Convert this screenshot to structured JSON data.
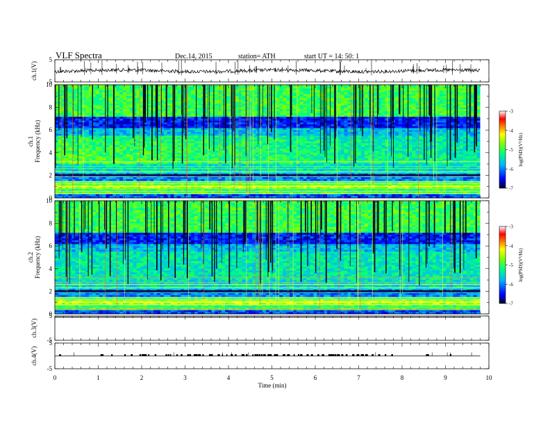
{
  "header": {
    "title": "VLF  Spectra",
    "date": "Dec.14, 2015",
    "station": "station= ATH",
    "start": "start  UT =    14: 50: 1"
  },
  "chart_data": [
    {
      "type": "line",
      "name": "ch1-waveform",
      "ylabel": "ch.1(V)",
      "ylim": [
        -5,
        5
      ],
      "yticks": [
        "5",
        "-5"
      ],
      "baseline": 0
    },
    {
      "type": "heatmap",
      "name": "ch1-spectrogram",
      "ylabel": "ch.1\nFrequency (kHz)",
      "ylim": [
        0,
        10
      ],
      "yticks": [
        "0",
        "2",
        "4",
        "6",
        "8",
        "10"
      ],
      "colorbar": {
        "label": "log(PSD)(V²/Hz)",
        "range": [
          -7,
          -3
        ],
        "ticks": [
          "-3",
          "-4",
          "-5",
          "-6",
          "-7"
        ]
      }
    },
    {
      "type": "heatmap",
      "name": "ch2-spectrogram",
      "ylabel": "ch.2\nFrequency (kHz)",
      "ylim": [
        0,
        10
      ],
      "yticks": [
        "0",
        "2",
        "4",
        "6",
        "8",
        "10"
      ],
      "colorbar": {
        "label": "log(PSD)(V²/Hz)",
        "range": [
          -7,
          -3
        ],
        "ticks": [
          "-3",
          "-4",
          "-5",
          "-6",
          "-7"
        ]
      }
    },
    {
      "type": "line",
      "name": "ch3-waveform",
      "ylabel": "ch.3(V)",
      "ylim": [
        -5,
        5
      ],
      "yticks": [
        "5",
        "-5"
      ],
      "baseline": 4.5
    },
    {
      "type": "line",
      "name": "ch4-waveform",
      "ylabel": "ch.4(V)",
      "ylim": [
        -5,
        5
      ],
      "yticks": [
        "5",
        "-5"
      ],
      "baseline": 0,
      "pulses_min": [
        0.1,
        1.05,
        1.3,
        1.6,
        1.75,
        1.95,
        2.0,
        2.05,
        2.15,
        2.3,
        2.55,
        2.6,
        2.65,
        2.8,
        2.9,
        3.05,
        3.1,
        3.2,
        3.25,
        3.3,
        3.4,
        3.55,
        3.6,
        3.75,
        3.85,
        3.95,
        4.05,
        4.15,
        4.3,
        4.4,
        4.55,
        4.6,
        4.65,
        4.7,
        4.75,
        4.8,
        4.9,
        4.95,
        5.05,
        5.1,
        5.25,
        5.35,
        5.5,
        5.6,
        5.65,
        5.8,
        5.9,
        6.05,
        6.15,
        6.3,
        6.35,
        6.4,
        6.45,
        6.5,
        6.6,
        6.7,
        6.85,
        6.95,
        7.05,
        7.15,
        7.3,
        7.45,
        7.6,
        7.75,
        8.55,
        9.1
      ]
    }
  ],
  "xaxis": {
    "label": "Time  (min)",
    "range": [
      0,
      10
    ],
    "ticks": [
      "0",
      "1",
      "2",
      "3",
      "4",
      "5",
      "6",
      "7",
      "8",
      "9",
      "10"
    ],
    "data_end": 9.8
  }
}
